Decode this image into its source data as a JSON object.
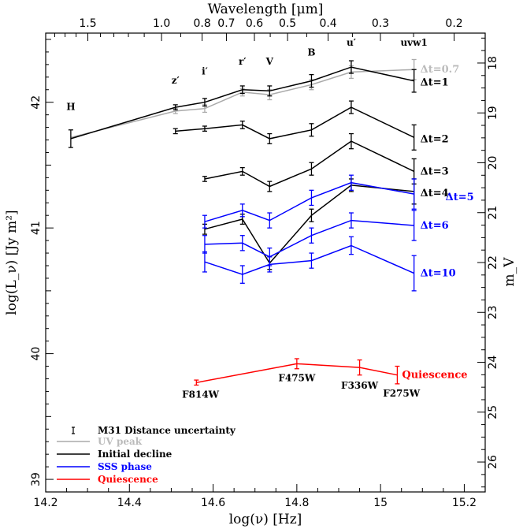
{
  "chart_data": {
    "type": "line",
    "xlabel": "log(ν) [Hz]",
    "ylabel": "log(L_ν) [Jy m²]",
    "top_xlabel": "Wavelength [μm]",
    "right_ylabel": "m_V",
    "xlim": [
      14.2,
      15.25
    ],
    "ylim": [
      38.9,
      42.55
    ],
    "right_ylim": [
      26.6,
      17.4
    ],
    "x_ticks": [
      14.2,
      14.4,
      14.6,
      14.8,
      15.0,
      15.2
    ],
    "x_tick_labels": [
      "14.2",
      "14.4",
      "14.6",
      "14.8",
      "15",
      "15.2"
    ],
    "y_ticks": [
      39,
      40,
      41,
      42
    ],
    "y_tick_labels": [
      "39",
      "40",
      "41",
      "42"
    ],
    "top_ticks_um": [
      1.5,
      1.0,
      0.8,
      0.7,
      0.6,
      0.5,
      0.4,
      0.3,
      0.2
    ],
    "top_tick_labels": [
      "1.5",
      "1.0",
      "0.8",
      "0.7",
      "0.6",
      "0.5",
      "0.4",
      "0.3",
      "0.2"
    ],
    "right_ticks": [
      18,
      19,
      20,
      21,
      22,
      23,
      24,
      25,
      26
    ],
    "right_tick_labels": [
      "18",
      "19",
      "20",
      "21",
      "22",
      "23",
      "24",
      "25",
      "26"
    ],
    "band_labels": [
      {
        "text": "H",
        "x": 14.26,
        "y": 41.94
      },
      {
        "text": "z′",
        "x": 14.51,
        "y": 42.15
      },
      {
        "text": "i′",
        "x": 14.58,
        "y": 42.22
      },
      {
        "text": "r′",
        "x": 14.67,
        "y": 42.3
      },
      {
        "text": "V",
        "x": 14.735,
        "y": 42.3
      },
      {
        "text": "B",
        "x": 14.835,
        "y": 42.37
      },
      {
        "text": "u′",
        "x": 14.93,
        "y": 42.45
      },
      {
        "text": "uvw1",
        "x": 15.08,
        "y": 42.45
      }
    ],
    "series": [
      {
        "group": "UV peak",
        "label": "Δt=0.7",
        "color": "#aaaaaa",
        "x": [
          14.26,
          14.51,
          14.58,
          14.67,
          14.735,
          14.835,
          14.93,
          15.08
        ],
        "y": [
          41.72,
          41.93,
          41.95,
          42.08,
          42.06,
          42.14,
          42.24,
          42.26
        ],
        "err": [
          0,
          0.02,
          0.03,
          0.03,
          0.04,
          0.04,
          0.05,
          0.08
        ]
      },
      {
        "group": "Initial decline",
        "label": "Δt=1",
        "color": "#000000",
        "x": [
          14.26,
          14.51,
          14.58,
          14.67,
          14.735,
          14.835,
          14.93,
          15.08
        ],
        "y": [
          41.71,
          41.96,
          42.0,
          42.1,
          42.09,
          42.17,
          42.28,
          42.17
        ],
        "err": [
          0.07,
          0.02,
          0.03,
          0.03,
          0.04,
          0.05,
          0.05,
          0.09
        ]
      },
      {
        "group": "Initial decline",
        "label": "Δt=2",
        "color": "#000000",
        "x": [
          14.51,
          14.58,
          14.67,
          14.735,
          14.835,
          14.93,
          15.08
        ],
        "y": [
          41.77,
          41.79,
          41.82,
          41.71,
          41.78,
          41.96,
          41.72
        ],
        "err": [
          0.02,
          0.02,
          0.03,
          0.04,
          0.05,
          0.05,
          0.1
        ]
      },
      {
        "group": "Initial decline",
        "label": "Δt=3",
        "color": "#000000",
        "x": [
          14.58,
          14.67,
          14.735,
          14.835,
          14.93,
          15.08
        ],
        "y": [
          41.39,
          41.45,
          41.33,
          41.47,
          41.69,
          41.45
        ],
        "err": [
          0.02,
          0.03,
          0.04,
          0.05,
          0.06,
          0.1
        ]
      },
      {
        "group": "Initial decline",
        "label": "Δt=4",
        "color": "#000000",
        "x": [
          14.58,
          14.67,
          14.735,
          14.835,
          14.93,
          15.08
        ],
        "y": [
          40.99,
          41.07,
          40.72,
          41.1,
          41.34,
          41.29
        ],
        "err": [
          0.04,
          0.04,
          0.05,
          0.05,
          0.05,
          0.1
        ]
      },
      {
        "group": "SSS phase",
        "label": "Δt=5",
        "color": "#0000ff",
        "x": [
          14.58,
          14.67,
          14.735,
          14.835,
          14.93,
          15.08
        ],
        "y": [
          41.05,
          41.14,
          41.06,
          41.24,
          41.36,
          41.27
        ],
        "err": [
          0.05,
          0.05,
          0.06,
          0.06,
          0.06,
          0.12
        ]
      },
      {
        "group": "SSS phase",
        "label": "Δt=6",
        "color": "#0000ff",
        "x": [
          14.58,
          14.67,
          14.735,
          14.835,
          14.93,
          15.08
        ],
        "y": [
          40.87,
          40.88,
          40.77,
          40.94,
          41.06,
          41.02
        ],
        "err": [
          0.07,
          0.06,
          0.07,
          0.06,
          0.06,
          0.12
        ]
      },
      {
        "group": "SSS phase",
        "label": "Δt=10",
        "color": "#0000ff",
        "x": [
          14.58,
          14.67,
          14.735,
          14.835,
          14.93,
          15.08
        ],
        "y": [
          40.73,
          40.63,
          40.71,
          40.74,
          40.86,
          40.64
        ],
        "err": [
          0.08,
          0.07,
          0.06,
          0.06,
          0.07,
          0.14
        ]
      },
      {
        "group": "Quiescence",
        "label": "Quiescence",
        "color": "#ff0000",
        "x": [
          14.56,
          14.8,
          14.95,
          15.04
        ],
        "y": [
          39.77,
          39.92,
          39.89,
          39.83
        ],
        "err": [
          0.02,
          0.04,
          0.06,
          0.07
        ]
      }
    ],
    "filter_labels": [
      {
        "text": "F814W",
        "x": 14.57,
        "y": 39.65
      },
      {
        "text": "F475W",
        "x": 14.8,
        "y": 39.78
      },
      {
        "text": "F336W",
        "x": 14.95,
        "y": 39.72
      },
      {
        "text": "F275W",
        "x": 15.05,
        "y": 39.66
      }
    ],
    "legend": {
      "position": "bottom-left",
      "distance_label": "M31 Distance uncertainty",
      "entries": [
        {
          "label": "UV peak",
          "color": "#aaaaaa"
        },
        {
          "label": "Initial decline",
          "color": "#000000"
        },
        {
          "label": "SSS phase",
          "color": "#0000ff"
        },
        {
          "label": "Quiescence",
          "color": "#ff0000"
        }
      ]
    }
  }
}
